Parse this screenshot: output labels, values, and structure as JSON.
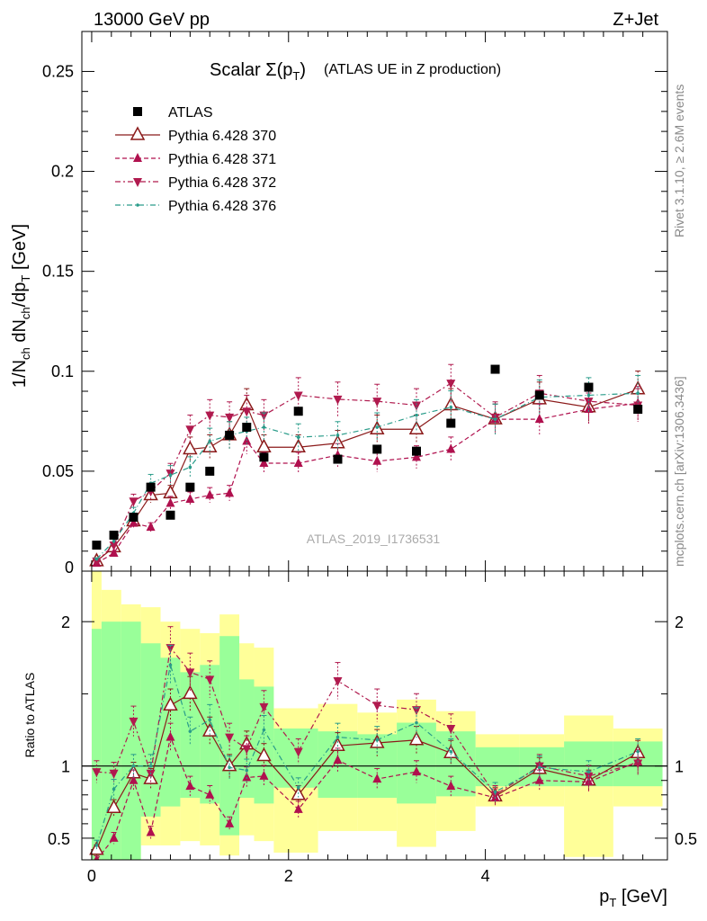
{
  "header": {
    "left": "13000 GeV pp",
    "right": "Z+Jet"
  },
  "side_text": {
    "rivet": "Rivet 3.1.10, ≥ 2.6M events",
    "mcplots": "mcplots.cern.ch [arXiv:1306.3436]"
  },
  "watermark": "ATLAS_2019_I1736531",
  "chart_data": {
    "type": "scatter",
    "title_main": "Scalar Σ(p",
    "title_sub": "T",
    "title_close": ")",
    "title_extra": "(ATLAS UE in Z production)",
    "xlabel": "p",
    "xlabel_sub": "T",
    "xlabel_unit": "[GeV]",
    "ylabel": "1/N_ch dN_ch/dp_T [GeV]",
    "ratio_ylabel": "Ratio to ATLAS",
    "xlim": [
      -0.1,
      5.85
    ],
    "ylim": [
      0,
      0.27
    ],
    "ratio_ylim": [
      0.35,
      2.35
    ],
    "x_ticks": [
      "0",
      "2",
      "4"
    ],
    "y_ticks": [
      "0.05",
      "0.1",
      "0.15",
      "0.2",
      "0.25"
    ],
    "y_zero_tick": "0",
    "ratio_ticks": [
      "0.5",
      "1",
      "2"
    ],
    "x": [
      0.05,
      0.225,
      0.425,
      0.6,
      0.8,
      1.0,
      1.2,
      1.4,
      1.575,
      1.75,
      2.1,
      2.5,
      2.9,
      3.3,
      3.65,
      4.1,
      4.55,
      5.05,
      5.55
    ],
    "bins": [
      [
        0.0,
        0.1
      ],
      [
        0.1,
        0.3
      ],
      [
        0.3,
        0.5
      ],
      [
        0.5,
        0.7
      ],
      [
        0.7,
        0.9
      ],
      [
        0.9,
        1.1
      ],
      [
        1.1,
        1.3
      ],
      [
        1.3,
        1.5
      ],
      [
        1.5,
        1.65
      ],
      [
        1.65,
        1.85
      ],
      [
        1.85,
        2.3
      ],
      [
        2.3,
        2.7
      ],
      [
        2.7,
        3.1
      ],
      [
        3.1,
        3.5
      ],
      [
        3.5,
        3.9
      ],
      [
        3.9,
        4.35
      ],
      [
        4.35,
        4.8
      ],
      [
        4.8,
        5.3
      ],
      [
        5.3,
        5.8
      ]
    ],
    "data": {
      "name": "ATLAS",
      "values": [
        0.013,
        0.018,
        0.027,
        0.042,
        0.028,
        0.042,
        0.05,
        0.068,
        0.072,
        0.057,
        0.08,
        0.056,
        0.061,
        0.06,
        0.074,
        0.101,
        0.088,
        0.092,
        0.081
      ],
      "band_inner": [
        [
          0.35,
          1.95
        ],
        [
          0.35,
          2.0
        ],
        [
          0.35,
          2.0
        ],
        [
          0.65,
          1.85
        ],
        [
          0.72,
          1.75
        ],
        [
          0.78,
          1.65
        ],
        [
          0.74,
          1.7
        ],
        [
          0.52,
          1.9
        ],
        [
          0.78,
          1.6
        ],
        [
          0.74,
          1.55
        ],
        [
          0.85,
          1.26
        ],
        [
          0.78,
          1.24
        ],
        [
          0.78,
          1.22
        ],
        [
          0.74,
          1.3
        ],
        [
          0.79,
          1.24
        ],
        [
          0.86,
          1.13
        ],
        [
          0.86,
          1.13
        ],
        [
          0.86,
          1.17
        ],
        [
          0.86,
          1.17
        ]
      ],
      "band_outer": [
        [
          0.35,
          2.35
        ],
        [
          0.35,
          2.22
        ],
        [
          0.35,
          2.12
        ],
        [
          0.45,
          2.1
        ],
        [
          0.45,
          2.0
        ],
        [
          0.48,
          1.95
        ],
        [
          0.45,
          1.92
        ],
        [
          0.38,
          2.05
        ],
        [
          0.52,
          1.85
        ],
        [
          0.48,
          1.82
        ],
        [
          0.4,
          1.4
        ],
        [
          0.55,
          1.43
        ],
        [
          0.55,
          1.37
        ],
        [
          0.44,
          1.46
        ],
        [
          0.55,
          1.38
        ],
        [
          0.72,
          1.22
        ],
        [
          0.72,
          1.22
        ],
        [
          0.37,
          1.35
        ],
        [
          0.72,
          1.26
        ]
      ]
    },
    "series": [
      {
        "name": "Pythia 6.428 370",
        "values": [
          0.005,
          0.012,
          0.025,
          0.038,
          0.039,
          0.061,
          0.062,
          0.068,
          0.083,
          0.062,
          0.062,
          0.064,
          0.071,
          0.071,
          0.083,
          0.076,
          0.086,
          0.082,
          0.091
        ],
        "ratio": [
          0.42,
          0.71,
          0.95,
          0.91,
          1.42,
          1.5,
          1.24,
          1.0,
          1.15,
          1.07,
          0.8,
          1.14,
          1.16,
          1.18,
          1.09,
          0.79,
          0.98,
          0.9,
          1.09
        ]
      },
      {
        "name": "Pythia 6.428 371",
        "values": [
          0.004,
          0.009,
          0.024,
          0.022,
          0.034,
          0.036,
          0.038,
          0.039,
          0.065,
          0.054,
          0.054,
          0.058,
          0.055,
          0.057,
          0.061,
          0.076,
          0.076,
          0.081,
          0.084
        ],
        "ratio": [
          0.35,
          0.5,
          0.9,
          0.54,
          1.2,
          0.86,
          0.8,
          0.6,
          0.92,
          0.93,
          0.7,
          1.04,
          0.91,
          0.96,
          0.86,
          0.78,
          0.9,
          0.89,
          1.03
        ]
      },
      {
        "name": "Pythia 6.428 372",
        "values": [
          0.005,
          0.013,
          0.035,
          0.04,
          0.049,
          0.071,
          0.078,
          0.077,
          0.08,
          0.078,
          0.088,
          0.086,
          0.085,
          0.083,
          0.094,
          0.077,
          0.089,
          0.085,
          0.083
        ],
        "ratio": [
          0.96,
          0.95,
          1.31,
          0.95,
          1.82,
          1.65,
          1.6,
          1.2,
          1.12,
          1.41,
          1.1,
          1.59,
          1.42,
          1.39,
          1.26,
          0.8,
          1.0,
          0.93,
          1.02
        ]
      },
      {
        "name": "Pythia 6.428 376",
        "values": [
          0.006,
          0.015,
          0.029,
          0.044,
          0.048,
          0.052,
          0.065,
          0.068,
          0.07,
          0.072,
          0.067,
          0.068,
          0.072,
          0.078,
          0.082,
          0.076,
          0.087,
          0.088,
          0.089
        ],
        "ratio": [
          0.45,
          0.84,
          1.0,
          1.0,
          1.7,
          1.24,
          1.32,
          0.99,
          0.97,
          1.25,
          0.85,
          1.2,
          1.18,
          1.3,
          1.1,
          0.82,
          0.99,
          0.96,
          1.1
        ]
      }
    ],
    "colors": {
      "data": "#000000",
      "p370": "#8b1a1a",
      "p371": "#b0104e",
      "p372": "#b01a4e",
      "p376": "#2a9c8a",
      "band_inner": "#99ff99",
      "band_outer": "#ffff99"
    }
  }
}
